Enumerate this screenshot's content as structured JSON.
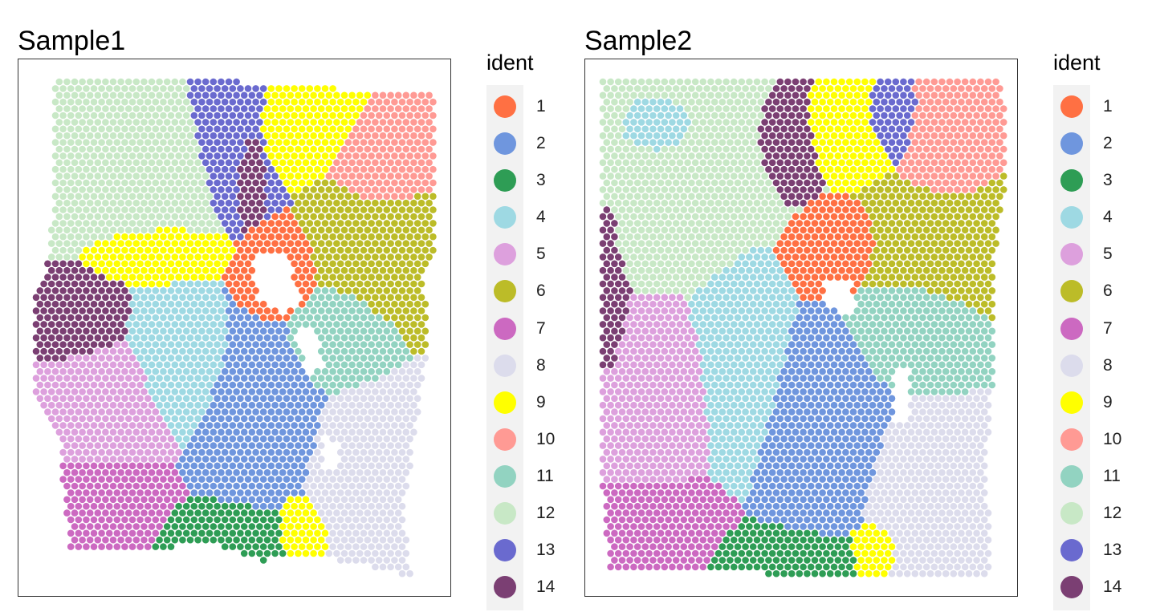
{
  "legend": {
    "title": "ident",
    "items": [
      {
        "label": "1",
        "color": "#FF7043"
      },
      {
        "label": "2",
        "color": "#6F96DE"
      },
      {
        "label": "3",
        "color": "#2E9D55"
      },
      {
        "label": "4",
        "color": "#9ED9E3"
      },
      {
        "label": "5",
        "color": "#DDA0DD"
      },
      {
        "label": "6",
        "color": "#BCBC28"
      },
      {
        "label": "7",
        "color": "#CC69C1"
      },
      {
        "label": "8",
        "color": "#DCDCEC"
      },
      {
        "label": "9",
        "color": "#FFFF00"
      },
      {
        "label": "10",
        "color": "#FF9A94"
      },
      {
        "label": "11",
        "color": "#92D3C1"
      },
      {
        "label": "12",
        "color": "#C8E8C6"
      },
      {
        "label": "13",
        "color": "#6A6ACF"
      },
      {
        "label": "14",
        "color": "#7B3F73"
      }
    ]
  },
  "chart_data": [
    {
      "type": "scatter",
      "title": "Sample1",
      "xlabel": "",
      "ylabel": "",
      "grid": false,
      "legend_placement": "right",
      "spot_layout": "hexagonal grid of tissue spots colored by cluster ident",
      "clusters": [
        {
          "ident": "12",
          "region": "upper-left"
        },
        {
          "ident": "14",
          "region": "left-middle"
        },
        {
          "ident": "5",
          "region": "left"
        },
        {
          "ident": "7",
          "region": "lower-left"
        },
        {
          "ident": "4",
          "region": "center"
        },
        {
          "ident": "2",
          "region": "center-lower"
        },
        {
          "ident": "3",
          "region": "bottom-center"
        },
        {
          "ident": "9",
          "region": "top-center and bottom"
        },
        {
          "ident": "13",
          "region": "top-center"
        },
        {
          "ident": "1",
          "region": "center-right"
        },
        {
          "ident": "6",
          "region": "upper-right"
        },
        {
          "ident": "10",
          "region": "upper-right"
        },
        {
          "ident": "11",
          "region": "right-middle"
        },
        {
          "ident": "8",
          "region": "lower-right"
        }
      ]
    },
    {
      "type": "scatter",
      "title": "Sample2",
      "xlabel": "",
      "ylabel": "",
      "grid": false,
      "legend_placement": "right",
      "spot_layout": "hexagonal grid of tissue spots colored by cluster ident",
      "clusters": [
        {
          "ident": "12",
          "region": "upper-left"
        },
        {
          "ident": "4",
          "region": "upper-left and center"
        },
        {
          "ident": "14",
          "region": "left edge and top-center"
        },
        {
          "ident": "5",
          "region": "left"
        },
        {
          "ident": "7",
          "region": "lower-left"
        },
        {
          "ident": "2",
          "region": "center-lower"
        },
        {
          "ident": "3",
          "region": "bottom-center"
        },
        {
          "ident": "9",
          "region": "top-center and bottom"
        },
        {
          "ident": "13",
          "region": "top-center"
        },
        {
          "ident": "1",
          "region": "center-right"
        },
        {
          "ident": "6",
          "region": "upper-right"
        },
        {
          "ident": "10",
          "region": "upper-right"
        },
        {
          "ident": "11",
          "region": "right-middle"
        },
        {
          "ident": "8",
          "region": "lower-right"
        }
      ]
    }
  ]
}
